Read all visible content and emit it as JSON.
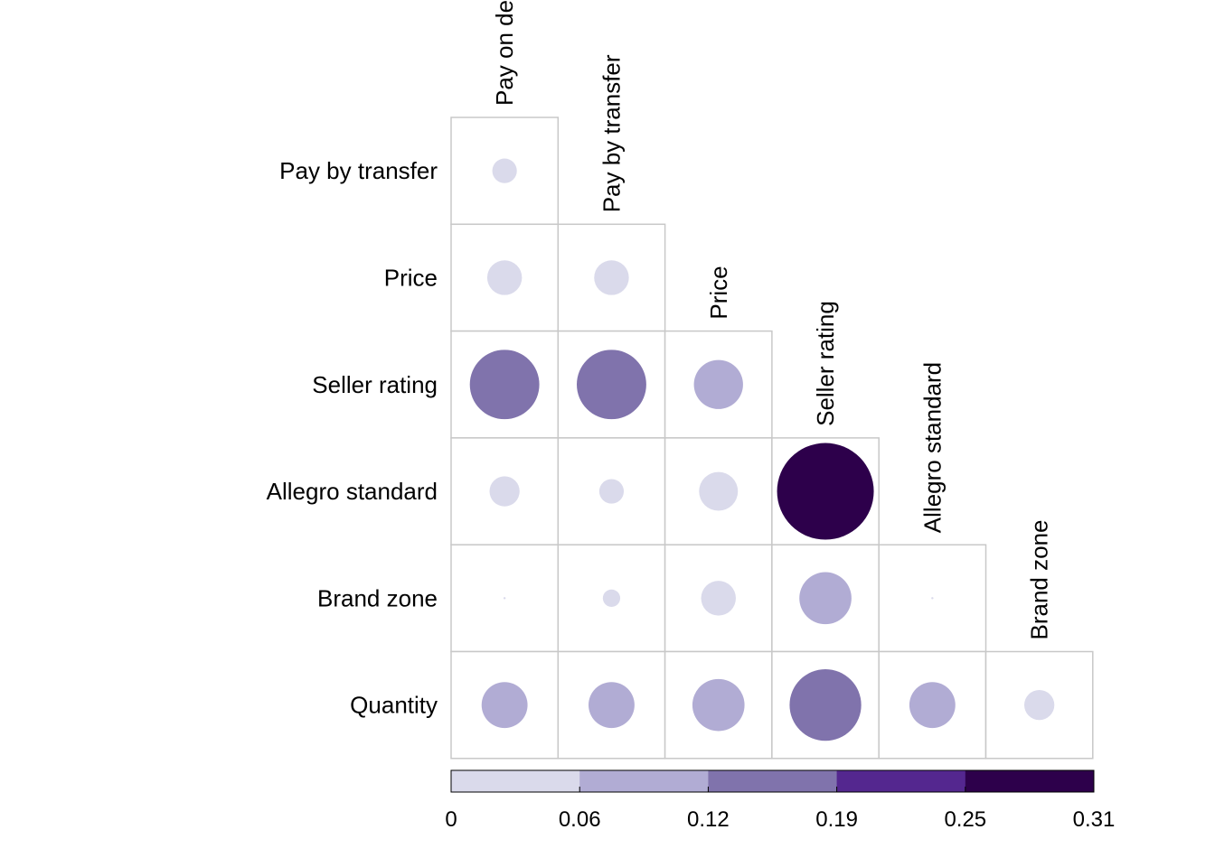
{
  "chart_data": {
    "type": "heatmap",
    "variables": [
      "Pay on delivery",
      "Pay by transfer",
      "Price",
      "Seller rating",
      "Allegro standard",
      "Brand zone",
      "Quantity"
    ],
    "row_labels": [
      "Pay by transfer",
      "Price",
      "Seller rating",
      "Allegro standard",
      "Brand zone",
      "Quantity"
    ],
    "column_labels": [
      "Pay on delivery",
      "Pay by transfer",
      "Price",
      "Seller rating",
      "Allegro standard",
      "Brand zone"
    ],
    "values": [
      [
        0.02,
        null,
        null,
        null,
        null,
        null
      ],
      [
        0.04,
        0.04,
        null,
        null,
        null,
        null
      ],
      [
        0.16,
        0.16,
        0.08,
        null,
        null,
        null
      ],
      [
        0.03,
        0.02,
        0.05,
        0.31,
        null,
        null
      ],
      [
        0.0,
        0.01,
        0.04,
        0.09,
        0.0,
        null
      ],
      [
        0.07,
        0.07,
        0.09,
        0.17,
        0.07,
        0.03
      ]
    ],
    "scale": {
      "min": 0,
      "max": 0.31,
      "breaks": [
        0,
        0.06,
        0.12,
        0.19,
        0.25,
        0.31
      ],
      "tick_labels": [
        "0",
        "0.06",
        "0.12",
        "0.19",
        "0.25",
        "0.31"
      ],
      "colors": [
        "#dadaeb",
        "#b1acd4",
        "#8073ac",
        "#54278f",
        "#2d004b"
      ]
    },
    "legend_position": "bottom"
  }
}
